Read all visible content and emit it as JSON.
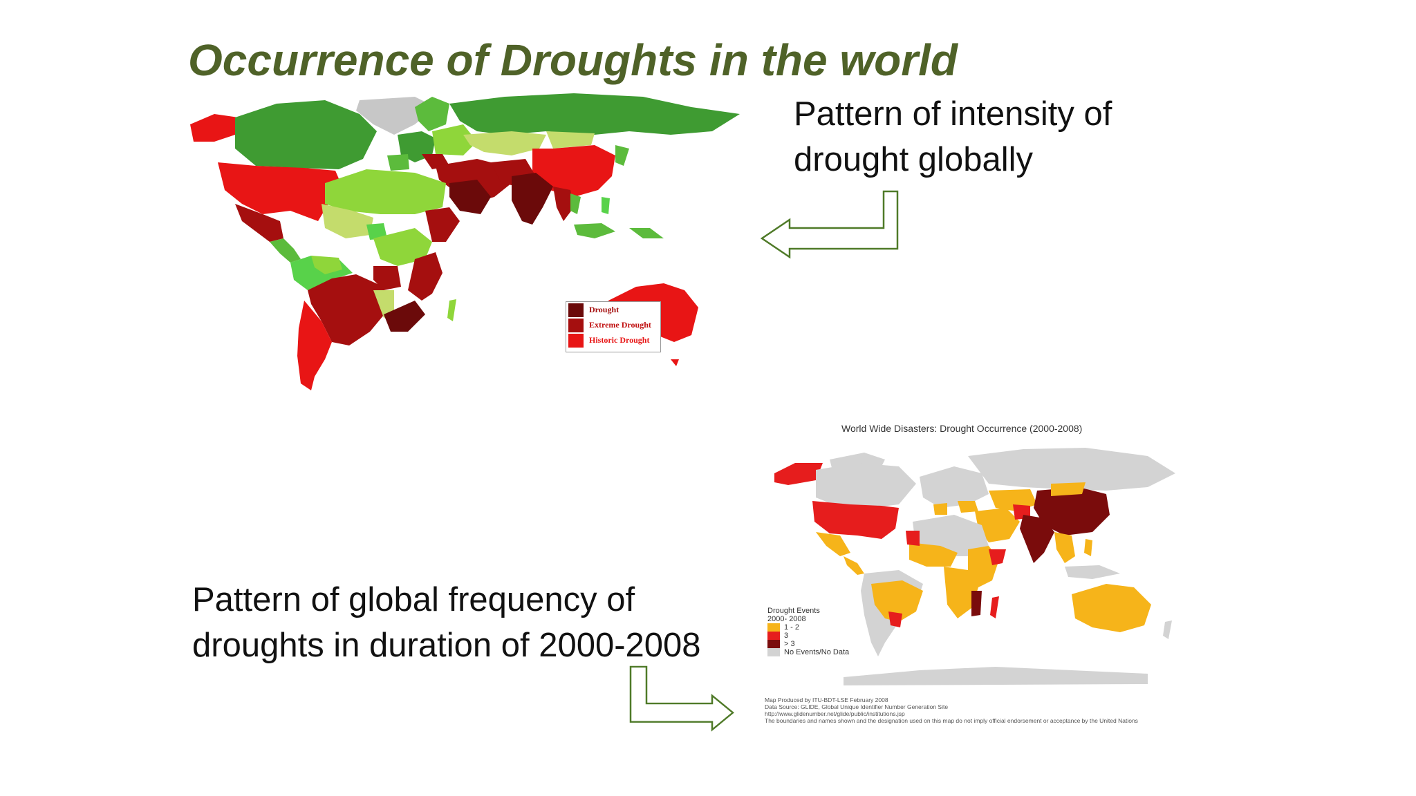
{
  "title": "Occurrence of Droughts in the world",
  "captions": {
    "top": [
      "Pattern of intensity of",
      "drought globally"
    ],
    "bottom": [
      "Pattern of global frequency of",
      "droughts in duration of 2000-2008"
    ]
  },
  "map_intensity": {
    "legend": [
      {
        "label": "Drought",
        "color": "#6b0a0a"
      },
      {
        "label": "Extreme Drought",
        "color": "#a50f0f"
      },
      {
        "label": "Historic Drought",
        "color": "#e81515"
      }
    ],
    "colors": {
      "green_dark": "#3f9b32",
      "green": "#5cbb3c",
      "green_light": "#8fd63a",
      "yellow_green": "#c4dc6c",
      "lime": "#58d24a",
      "grey": "#c7c7c7"
    }
  },
  "map_frequency": {
    "title": "World Wide Disasters: Drought Occurrence  (2000-2008)",
    "legend_title": "Drought Events",
    "legend_period": "2000- 2008",
    "legend": [
      {
        "label": "1 - 2",
        "color": "#f6b41a"
      },
      {
        "label": "3",
        "color": "#e61d1d"
      },
      {
        "label": "> 3",
        "color": "#7a0c0c"
      },
      {
        "label": "No Events/No Data",
        "color": "#d3d3d3"
      }
    ],
    "credits": [
      "Map Produced by ITU-BDT-LSE February 2008",
      "Data Source: GLIDE, Global Unique Identifier Number Generation Site",
      "http://www.glidenumber.net/glide/public/institutions.jsp",
      "The boundaries and names shown and the designation used on this map do not imply official endorsement or acceptance by the United Nations"
    ]
  },
  "arrow_color": "#4f7a28"
}
